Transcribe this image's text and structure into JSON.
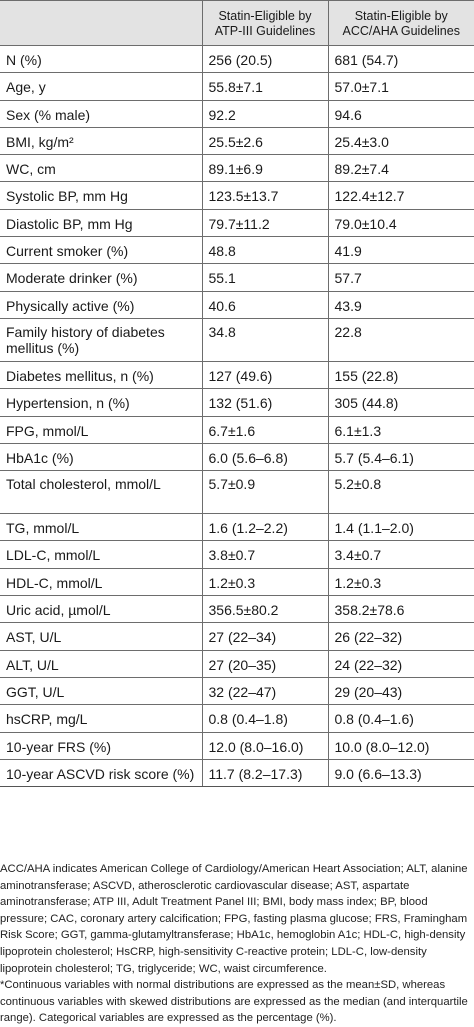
{
  "header": {
    "col_label": "",
    "col_atp_line1": "Statin-Eligible by",
    "col_atp_line2": "ATP-III Guidelines",
    "col_acc_line1": "Statin-Eligible by",
    "col_acc_line2": "ACC/AHA Guidelines"
  },
  "rows": [
    {
      "label": "N (%)",
      "atp": "256 (20.5)",
      "acc": "681 (54.7)"
    },
    {
      "label": "Age, y",
      "atp": "55.8±7.1",
      "acc": "57.0±7.1"
    },
    {
      "label": "Sex (% male)",
      "atp": "92.2",
      "acc": "94.6"
    },
    {
      "label": "BMI, kg/m²",
      "atp": "25.5±2.6",
      "acc": "25.4±3.0"
    },
    {
      "label": "WC, cm",
      "atp": "89.1±6.9",
      "acc": "89.2±7.4"
    },
    {
      "label": "Systolic BP, mm Hg",
      "atp": "123.5±13.7",
      "acc": "122.4±12.7"
    },
    {
      "label": "Diastolic BP, mm Hg",
      "atp": "79.7±11.2",
      "acc": "79.0±10.4"
    },
    {
      "label": "Current smoker (%)",
      "atp": "48.8",
      "acc": "41.9"
    },
    {
      "label": "Moderate drinker (%)",
      "atp": "55.1",
      "acc": "57.7"
    },
    {
      "label": "Physically active (%)",
      "atp": "40.6",
      "acc": "43.9"
    },
    {
      "label": "Family history of diabetes mellitus (%)",
      "atp": "34.8",
      "acc": "22.8"
    },
    {
      "label": "Diabetes mellitus, n (%)",
      "atp": "127 (49.6)",
      "acc": "155 (22.8)"
    },
    {
      "label": "Hypertension, n (%)",
      "atp": "132 (51.6)",
      "acc": "305 (44.8)"
    },
    {
      "label": "FPG, mmol/L",
      "atp": "6.7±1.6",
      "acc": "6.1±1.3"
    },
    {
      "label": "HbA1c (%)",
      "atp": "6.0 (5.6–6.8)",
      "acc": "5.7 (5.4–6.1)"
    },
    {
      "label": "Total cholesterol, mmol/L",
      "atp": "5.7±0.9",
      "acc": "5.2±0.8"
    },
    {
      "label": "TG, mmol/L",
      "atp": "1.6 (1.2–2.2)",
      "acc": "1.4 (1.1–2.0)"
    },
    {
      "label": "LDL-C, mmol/L",
      "atp": "3.8±0.7",
      "acc": "3.4±0.7"
    },
    {
      "label": "HDL-C, mmol/L",
      "atp": "1.2±0.3",
      "acc": "1.2±0.3"
    },
    {
      "label": "Uric acid, µmol/L",
      "atp": "356.5±80.2",
      "acc": "358.2±78.6"
    },
    {
      "label": "AST, U/L",
      "atp": "27 (22–34)",
      "acc": "26 (22–32)"
    },
    {
      "label": "ALT, U/L",
      "atp": "27 (20–35)",
      "acc": "24 (22–32)"
    },
    {
      "label": "GGT, U/L",
      "atp": "32 (22–47)",
      "acc": "29 (20–43)"
    },
    {
      "label": "hsCRP, mg/L",
      "atp": "0.8 (0.4–1.8)",
      "acc": "0.8 (0.4–1.6)"
    },
    {
      "label": "10-year FRS (%)",
      "atp": "12.0 (8.0–16.0)",
      "acc": "10.0 (8.0–12.0)"
    },
    {
      "label": "10-year ASCVD risk score (%)",
      "atp": "11.7 (8.2–17.3)",
      "acc": "9.0 (6.6–13.3)"
    }
  ],
  "footnote": {
    "abbreviations": "ACC/AHA indicates American College of Cardiology/American Heart Association; ALT, alanine aminotransferase; ASCVD, atherosclerotic cardiovascular disease; AST, aspartate aminotransferase; ATP III, Adult Treatment Panel III; BMI, body mass index; BP, blood pressure; CAC, coronary artery calcification; FPG, fasting plasma glucose; FRS, Framingham Risk Score; GGT, gamma-glutamyltransferase; HbA1c, hemoglobin A1c; HDL-C, high-density lipoprotein cholesterol; HsCRP, high-sensitivity C-reactive protein; LDL-C, low-density lipoprotein cholesterol; TG, triglyceride; WC, waist circumference.",
    "note": "*Continuous variables with normal distributions are expressed as the mean±SD, whereas continuous variables with skewed distributions are expressed as the median (and interquartile range). Categorical variables are expressed as the percentage (%)."
  }
}
